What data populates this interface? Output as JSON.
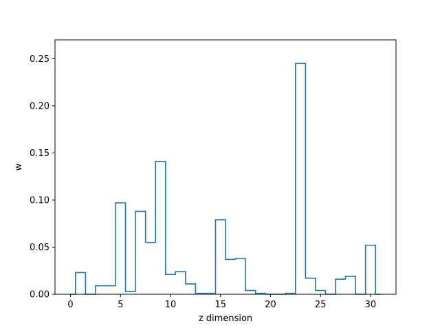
{
  "chart_data": {
    "type": "step",
    "title": "",
    "xlabel": "z dimension",
    "ylabel": "w",
    "xlim": [
      -1.55,
      32.55
    ],
    "ylim": [
      0,
      0.27
    ],
    "grid": false,
    "xticks": [
      0,
      5,
      10,
      15,
      20,
      25,
      30
    ],
    "yticks": [
      0.0,
      0.05,
      0.1,
      0.15,
      0.2,
      0.25
    ],
    "x": [
      0,
      1,
      2,
      3,
      4,
      5,
      6,
      7,
      8,
      9,
      10,
      11,
      12,
      13,
      14,
      15,
      16,
      17,
      18,
      19,
      20,
      21,
      22,
      23,
      24,
      25,
      26,
      27,
      28,
      29,
      30,
      31
    ],
    "values": [
      0.0,
      0.023,
      0.0,
      0.009,
      0.009,
      0.097,
      0.003,
      0.088,
      0.055,
      0.141,
      0.021,
      0.024,
      0.011,
      0.001,
      0.001,
      0.079,
      0.037,
      0.038,
      0.004,
      0.001,
      0.0,
      0.0,
      0.001,
      0.245,
      0.017,
      0.004,
      0.0,
      0.016,
      0.019,
      0.0,
      0.052,
      0.0
    ],
    "line_color": "#1f77b4"
  }
}
